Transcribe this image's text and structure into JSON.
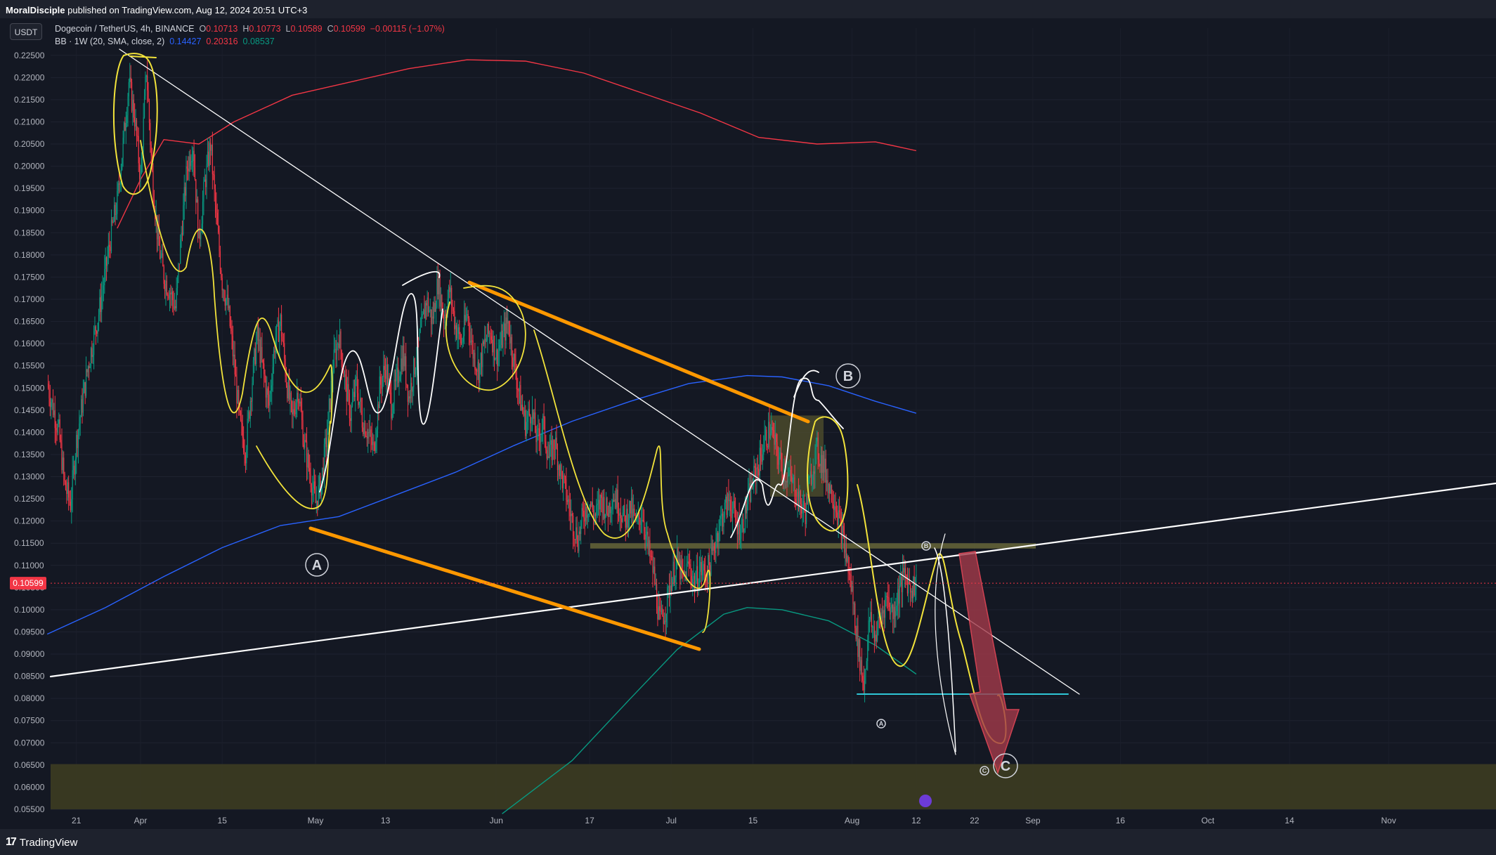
{
  "header": {
    "author": "MoralDisciple",
    "published_text": "published on TradingView.com, Aug 12, 2024 20:51 UTC+3"
  },
  "symbol_button": "USDT",
  "legend": {
    "symbol": "Dogecoin / TetherUS, 4h, BINANCE",
    "open_label": "O",
    "open": "0.10713",
    "high_label": "H",
    "high": "0.10773",
    "low_label": "L",
    "low": "0.10589",
    "close_label": "C",
    "close": "0.10599",
    "change": "−0.00115 (−1.07%)",
    "indicator": "BB · 1W (20, SMA, close, 2)",
    "bb_basis": "0.14427",
    "bb_upper": "0.20316",
    "bb_lower": "0.08537"
  },
  "footer": {
    "brand": "TradingView"
  },
  "colors": {
    "background": "#141823",
    "bull": "#089981",
    "bear": "#f23645",
    "bb_basis": "#2962ff",
    "bb_upper": "#f23645",
    "bb_lower": "#089981",
    "price_label": "#f23645",
    "annotation_yellow": "#f2e33b",
    "annotation_orange": "#ff9800",
    "support_line": "#2fc6d6"
  },
  "chart_data": {
    "type": "candlestick",
    "symbol": "DOGEUSDT",
    "interval": "4h",
    "ylim": [
      0.055,
      0.2275
    ],
    "y_ticks": [
      "0.05500",
      "0.06000",
      "0.06500",
      "0.07000",
      "0.07500",
      "0.08000",
      "0.08500",
      "0.09000",
      "0.09500",
      "0.10000",
      "0.10500",
      "0.11000",
      "0.11500",
      "0.12000",
      "0.12500",
      "0.13000",
      "0.13500",
      "0.14000",
      "0.14500",
      "0.15000",
      "0.15500",
      "0.16000",
      "0.16500",
      "0.17000",
      "0.17500",
      "0.18000",
      "0.18500",
      "0.19000",
      "0.19500",
      "0.20000",
      "0.20500",
      "0.21000",
      "0.21500",
      "0.22000",
      "0.22500"
    ],
    "x_ticks": [
      "21",
      "Apr",
      "15",
      "May",
      "13",
      "Jun",
      "17",
      "Jul",
      "15",
      "Aug",
      "12",
      "22",
      "Sep",
      "16",
      "Oct",
      "14",
      "Nov"
    ],
    "x_tick_days": [
      -11,
      0,
      14,
      30,
      42,
      61,
      77,
      91,
      105,
      122,
      133,
      143,
      153,
      168,
      183,
      197,
      214
    ],
    "current_price": "0.10599",
    "price_path": [
      [
        -16,
        0.151
      ],
      [
        -14,
        0.14
      ],
      [
        -13,
        0.128
      ],
      [
        -12,
        0.124
      ],
      [
        -11,
        0.138
      ],
      [
        -9,
        0.155
      ],
      [
        -7,
        0.168
      ],
      [
        -5,
        0.185
      ],
      [
        -4,
        0.192
      ],
      [
        -3,
        0.205
      ],
      [
        -2,
        0.219
      ],
      [
        -1,
        0.211
      ],
      [
        0,
        0.197
      ],
      [
        1,
        0.222
      ],
      [
        2,
        0.198
      ],
      [
        3,
        0.183
      ],
      [
        4,
        0.175
      ],
      [
        5,
        0.172
      ],
      [
        6,
        0.168
      ],
      [
        7,
        0.185
      ],
      [
        8,
        0.2
      ],
      [
        9,
        0.205
      ],
      [
        10,
        0.183
      ],
      [
        11,
        0.196
      ],
      [
        12,
        0.205
      ],
      [
        13,
        0.188
      ],
      [
        14,
        0.174
      ],
      [
        15,
        0.168
      ],
      [
        16,
        0.156
      ],
      [
        17,
        0.142
      ],
      [
        18,
        0.136
      ],
      [
        19,
        0.15
      ],
      [
        20,
        0.162
      ],
      [
        21,
        0.154
      ],
      [
        22,
        0.146
      ],
      [
        23,
        0.16
      ],
      [
        24,
        0.165
      ],
      [
        25,
        0.152
      ],
      [
        26,
        0.143
      ],
      [
        27,
        0.15
      ],
      [
        28,
        0.138
      ],
      [
        29,
        0.131
      ],
      [
        30,
        0.124
      ],
      [
        31,
        0.129
      ],
      [
        32,
        0.14
      ],
      [
        33,
        0.155
      ],
      [
        34,
        0.162
      ],
      [
        35,
        0.152
      ],
      [
        36,
        0.144
      ],
      [
        37,
        0.151
      ],
      [
        38,
        0.143
      ],
      [
        39,
        0.14
      ],
      [
        40,
        0.136
      ],
      [
        41,
        0.15
      ],
      [
        42,
        0.155
      ],
      [
        43,
        0.146
      ],
      [
        44,
        0.152
      ],
      [
        45,
        0.158
      ],
      [
        46,
        0.148
      ],
      [
        47,
        0.155
      ],
      [
        48,
        0.162
      ],
      [
        49,
        0.17
      ],
      [
        50,
        0.165
      ],
      [
        51,
        0.174
      ],
      [
        52,
        0.166
      ],
      [
        53,
        0.172
      ],
      [
        54,
        0.164
      ],
      [
        55,
        0.16
      ],
      [
        56,
        0.167
      ],
      [
        57,
        0.158
      ],
      [
        58,
        0.154
      ],
      [
        59,
        0.16
      ],
      [
        60,
        0.163
      ],
      [
        61,
        0.157
      ],
      [
        62,
        0.161
      ],
      [
        63,
        0.165
      ],
      [
        64,
        0.156
      ],
      [
        65,
        0.148
      ],
      [
        66,
        0.142
      ],
      [
        67,
        0.145
      ],
      [
        68,
        0.138
      ],
      [
        69,
        0.142
      ],
      [
        70,
        0.134
      ],
      [
        71,
        0.138
      ],
      [
        72,
        0.131
      ],
      [
        73,
        0.126
      ],
      [
        74,
        0.12
      ],
      [
        75,
        0.116
      ],
      [
        76,
        0.122
      ],
      [
        77,
        0.124
      ],
      [
        78,
        0.121
      ],
      [
        79,
        0.125
      ],
      [
        80,
        0.122
      ],
      [
        81,
        0.126
      ],
      [
        82,
        0.124
      ],
      [
        83,
        0.12
      ],
      [
        84,
        0.123
      ],
      [
        85,
        0.119
      ],
      [
        86,
        0.122
      ],
      [
        87,
        0.114
      ],
      [
        88,
        0.108
      ],
      [
        89,
        0.097
      ],
      [
        90,
        0.1
      ],
      [
        91,
        0.107
      ],
      [
        92,
        0.111
      ],
      [
        93,
        0.107
      ],
      [
        94,
        0.11
      ],
      [
        95,
        0.106
      ],
      [
        96,
        0.109
      ],
      [
        97,
        0.108
      ],
      [
        98,
        0.112
      ],
      [
        99,
        0.118
      ],
      [
        100,
        0.122
      ],
      [
        101,
        0.125
      ],
      [
        102,
        0.12
      ],
      [
        103,
        0.118
      ],
      [
        104,
        0.124
      ],
      [
        105,
        0.129
      ],
      [
        106,
        0.133
      ],
      [
        107,
        0.138
      ],
      [
        108,
        0.141
      ],
      [
        109,
        0.136
      ],
      [
        110,
        0.132
      ],
      [
        111,
        0.13
      ],
      [
        112,
        0.128
      ],
      [
        113,
        0.124
      ],
      [
        114,
        0.122
      ],
      [
        115,
        0.131
      ],
      [
        116,
        0.136
      ],
      [
        117,
        0.133
      ],
      [
        118,
        0.128
      ],
      [
        119,
        0.125
      ],
      [
        120,
        0.119
      ],
      [
        121,
        0.112
      ],
      [
        122,
        0.104
      ],
      [
        123,
        0.092
      ],
      [
        124,
        0.083
      ],
      [
        125,
        0.098
      ],
      [
        126,
        0.094
      ],
      [
        127,
        0.099
      ],
      [
        128,
        0.103
      ],
      [
        129,
        0.099
      ],
      [
        130,
        0.104
      ],
      [
        131,
        0.108
      ],
      [
        132,
        0.105
      ],
      [
        133,
        0.106
      ]
    ],
    "bb_upper": [
      [
        -4,
        0.186
      ],
      [
        0,
        0.197
      ],
      [
        4,
        0.206
      ],
      [
        10,
        0.205
      ],
      [
        16,
        0.21
      ],
      [
        26,
        0.216
      ],
      [
        36,
        0.219
      ],
      [
        46,
        0.222
      ],
      [
        56,
        0.224
      ],
      [
        66,
        0.2237
      ],
      [
        76,
        0.221
      ],
      [
        86,
        0.2165
      ],
      [
        96,
        0.212
      ],
      [
        106,
        0.2065
      ],
      [
        116,
        0.205
      ],
      [
        126,
        0.2055
      ],
      [
        133,
        0.2035
      ]
    ],
    "bb_basis": [
      [
        -16,
        0.0945
      ],
      [
        -6,
        0.1005
      ],
      [
        4,
        0.1075
      ],
      [
        14,
        0.114
      ],
      [
        24,
        0.119
      ],
      [
        34,
        0.121
      ],
      [
        44,
        0.126
      ],
      [
        54,
        0.131
      ],
      [
        64,
        0.137
      ],
      [
        74,
        0.1425
      ],
      [
        84,
        0.147
      ],
      [
        94,
        0.151
      ],
      [
        104,
        0.1528
      ],
      [
        110,
        0.1525
      ],
      [
        118,
        0.1505
      ],
      [
        126,
        0.147
      ],
      [
        133,
        0.1443
      ]
    ],
    "bb_lower": [
      [
        62,
        0.054
      ],
      [
        74,
        0.066
      ],
      [
        84,
        0.08
      ],
      [
        92,
        0.091
      ],
      [
        100,
        0.099
      ],
      [
        104,
        0.1005
      ],
      [
        110,
        0.1
      ],
      [
        118,
        0.0975
      ],
      [
        126,
        0.092
      ],
      [
        133,
        0.0855
      ]
    ],
    "annotations": {
      "wave_labels": [
        "A",
        "B",
        "C",
        "B",
        "A",
        "C"
      ]
    }
  }
}
